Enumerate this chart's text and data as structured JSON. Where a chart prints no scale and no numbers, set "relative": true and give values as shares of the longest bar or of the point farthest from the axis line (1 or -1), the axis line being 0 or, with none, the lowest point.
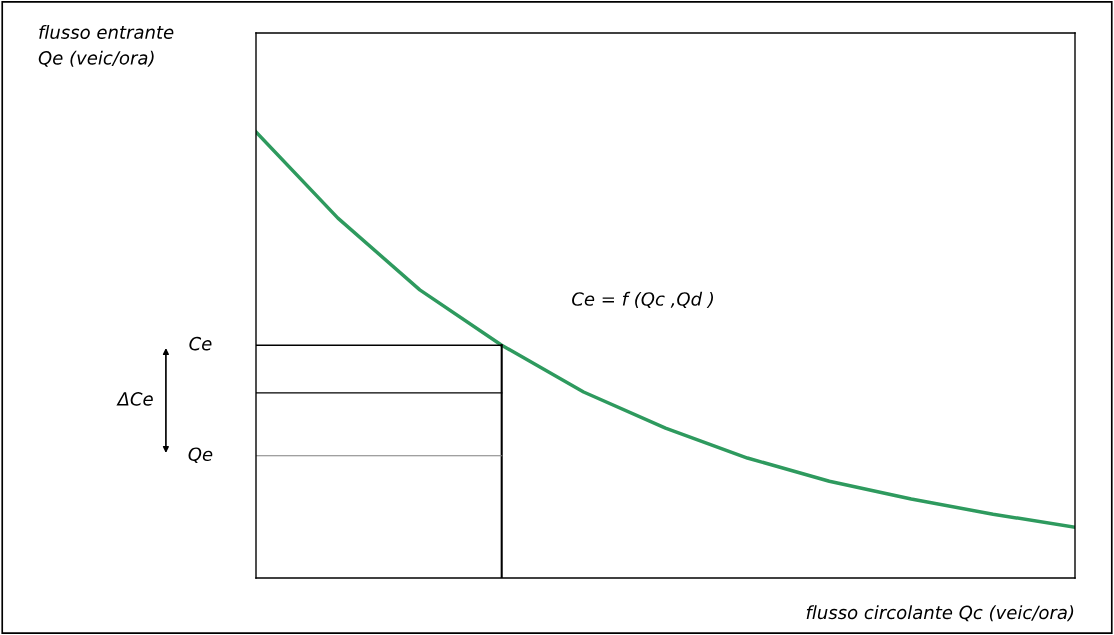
{
  "chart_data": {
    "type": "line",
    "relative": true,
    "xlabel": "flusso circolante Qc (veic/ora)",
    "categories": [
      null,
      null,
      null,
      null,
      null,
      null,
      null,
      null,
      null,
      null,
      null
    ],
    "series": [
      {
        "color": "#2e9a5e",
        "values": [
          1,
          0.807,
          0.646,
          0.522,
          0.417,
          0.336,
          0.269,
          0.217,
          0.177,
          0.143,
          0.114
        ]
      }
    ],
    "ref_lines": [
      {
        "axis": "y",
        "value": 0.522,
        "label": "Ce",
        "color": "#000000"
      },
      {
        "axis": "y",
        "value": 0.415,
        "label": null,
        "color": "#000000"
      },
      {
        "axis": "y",
        "value": 0.274,
        "label": "Qe",
        "color": "#808080"
      }
    ],
    "annotations": [
      "Ce = f (Qc ,Qd )",
      "ΔCe",
      "flusso entrante\nQe (veic/ora)"
    ],
    "grid": false,
    "marker": "none",
    "line_style": "solid"
  }
}
